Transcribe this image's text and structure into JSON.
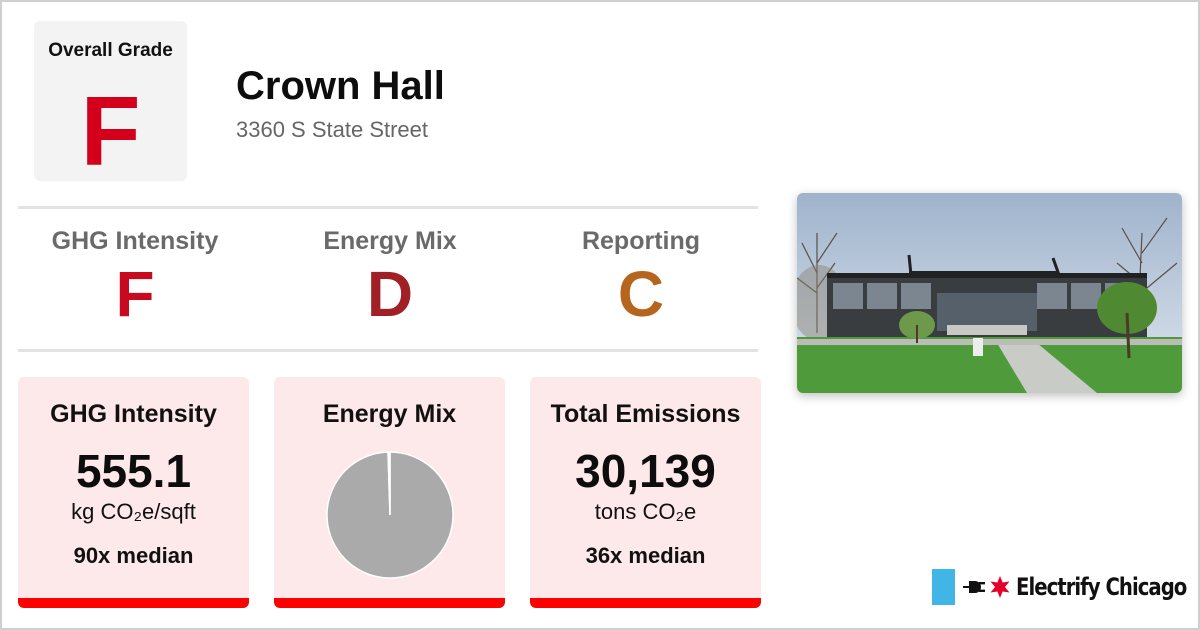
{
  "overall": {
    "label": "Overall Grade",
    "grade": "F"
  },
  "building": {
    "name": "Crown Hall",
    "address": "3360 S State Street"
  },
  "grades": [
    {
      "label": "GHG Intensity",
      "grade": "F",
      "color": "#c80a1e"
    },
    {
      "label": "Energy Mix",
      "grade": "D",
      "color": "#a12027"
    },
    {
      "label": "Reporting",
      "grade": "C",
      "color": "#b5651d"
    }
  ],
  "cards": {
    "ghg": {
      "title": "GHG Intensity",
      "value": "555.1",
      "unit": "kg CO₂e/sqft",
      "median": "90x median"
    },
    "mix": {
      "title": "Energy Mix",
      "pie": {
        "type": "pie",
        "slices": [
          {
            "value": 99.5,
            "color": "#aaaaaa"
          },
          {
            "value": 0.5,
            "color": "#ffffff"
          }
        ]
      }
    },
    "emissions": {
      "title": "Total Emissions",
      "value": "30,139",
      "unit": "tons CO₂e",
      "median": "36x median"
    }
  },
  "logo": {
    "text": "Electrify Chicago",
    "icons": [
      "flag-icon",
      "plug-icon",
      "star-icon"
    ]
  },
  "colors": {
    "accent_red": "#ff0000",
    "grade_f": "#d4001b",
    "card_bg": "#fde8ea"
  }
}
